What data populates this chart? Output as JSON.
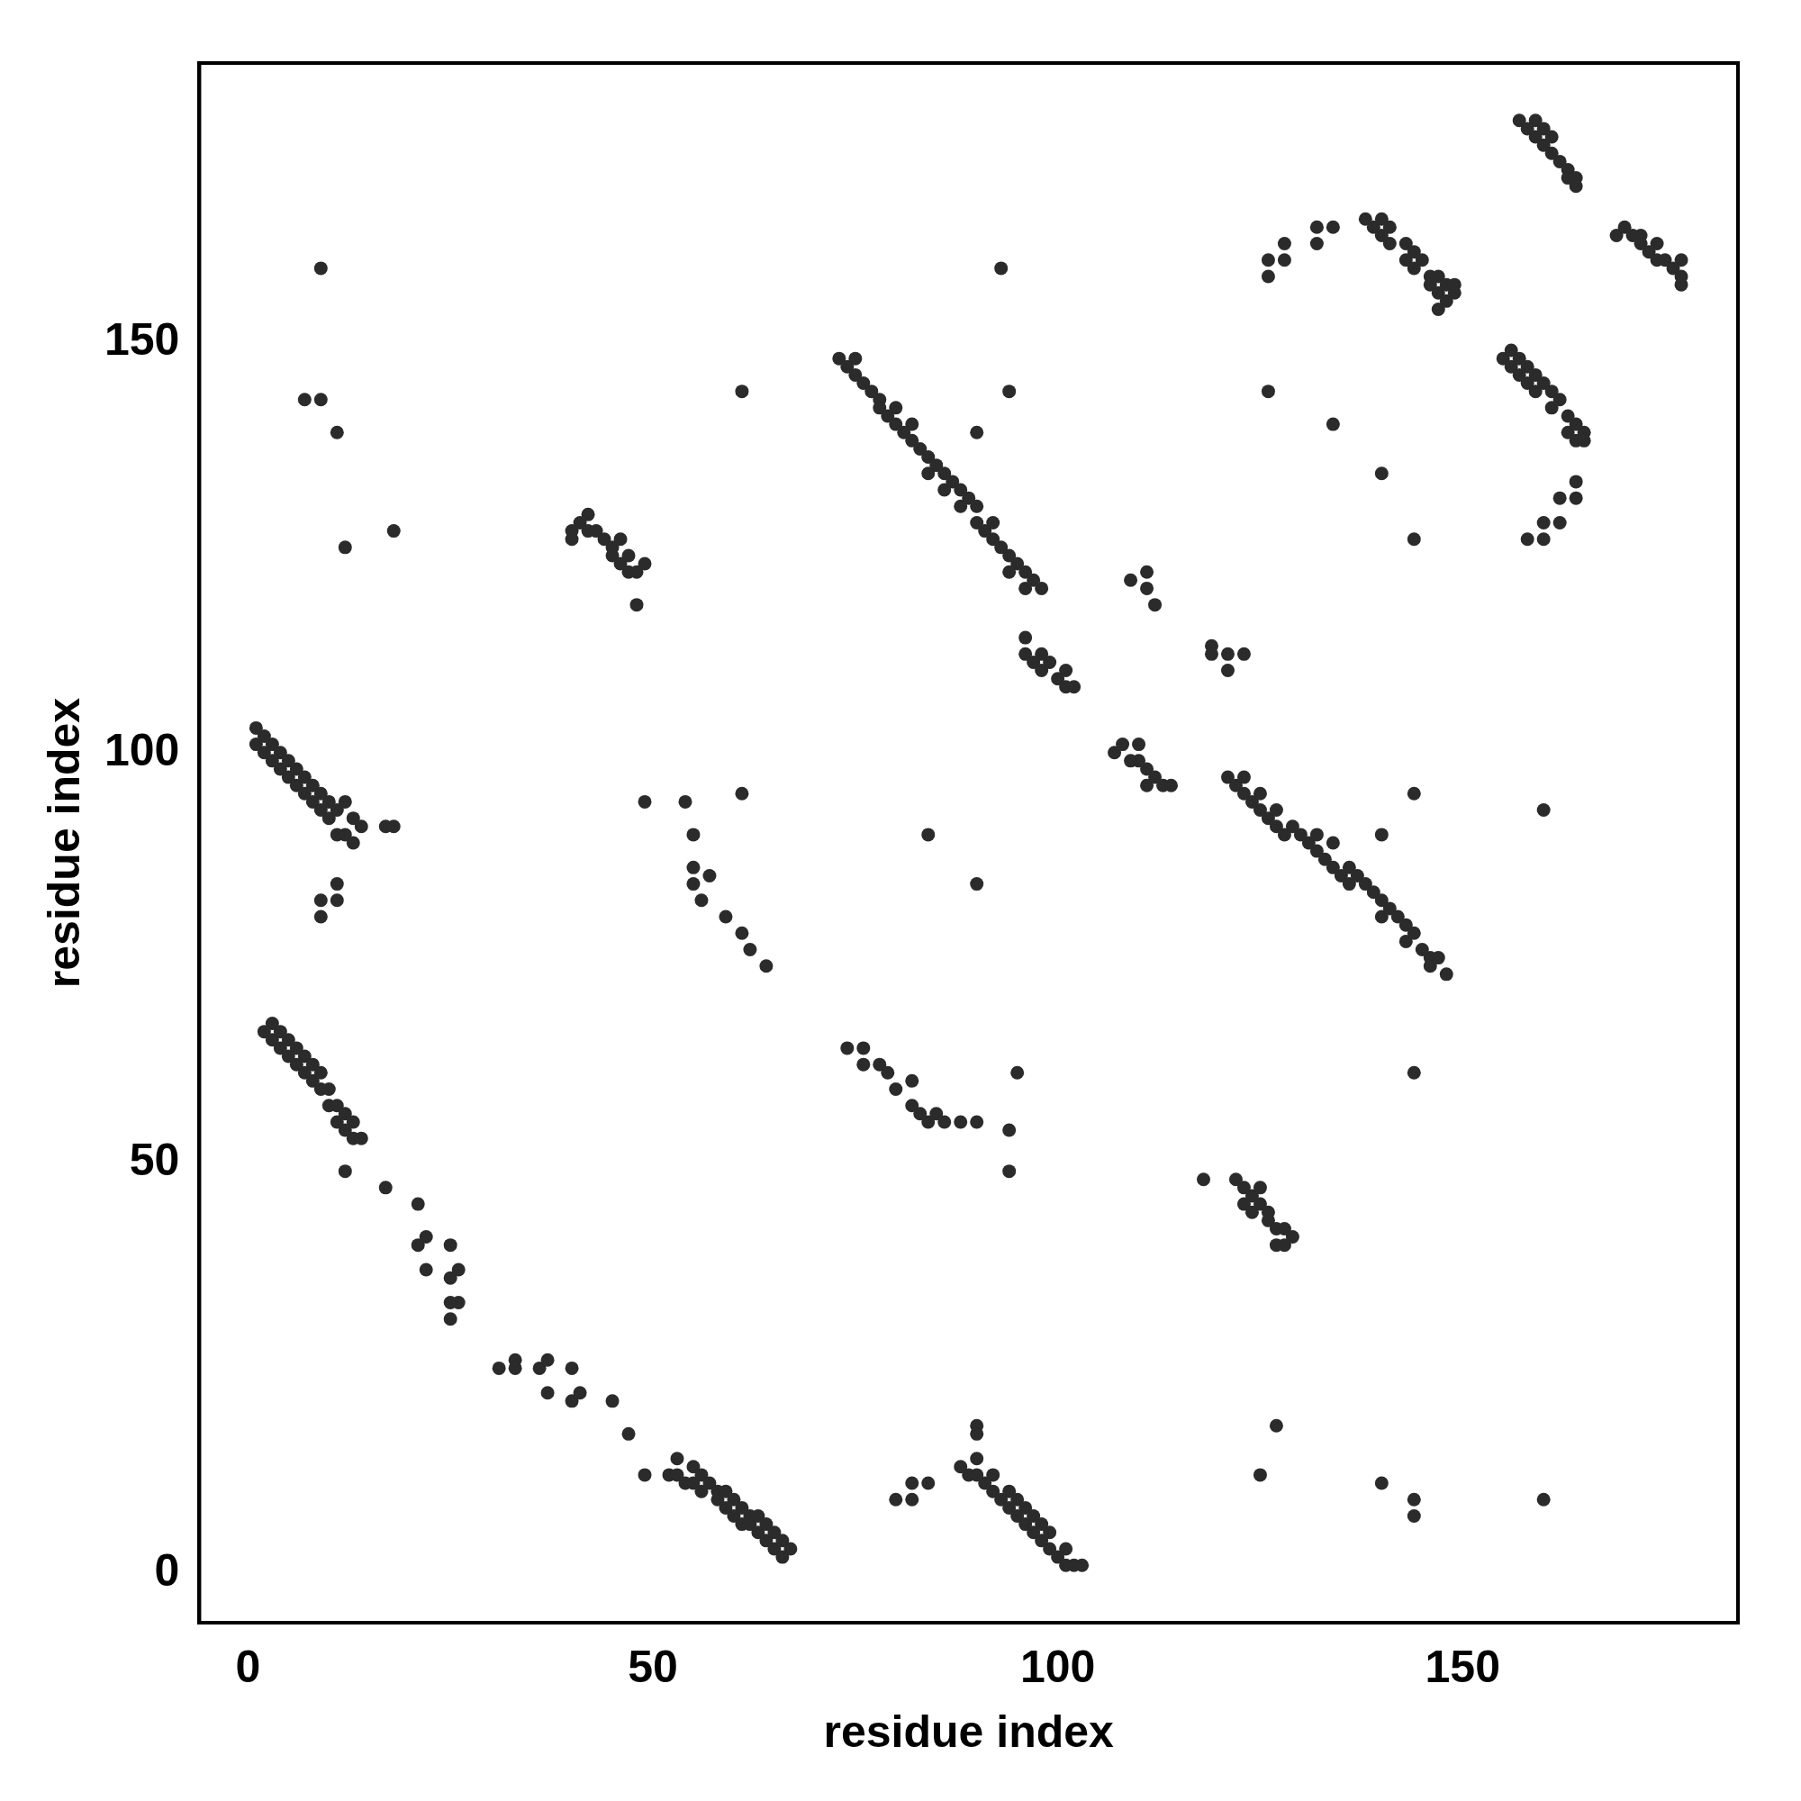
{
  "chart_data": {
    "type": "scatter",
    "xlabel": "residue index",
    "ylabel": "residue index",
    "xlim": [
      -6,
      184
    ],
    "ylim": [
      -6,
      184
    ],
    "xticks": [
      0,
      50,
      100,
      150
    ],
    "yticks": [
      0,
      50,
      100,
      150
    ],
    "grid": false,
    "legend": false,
    "marker": "circle",
    "series": [
      {
        "color": "#2b2b2b",
        "x": [
          1,
          1,
          2,
          2,
          3,
          3,
          4,
          4,
          5,
          5,
          6,
          6,
          7,
          7,
          8,
          8,
          9,
          9,
          10,
          10,
          11,
          11,
          12,
          12,
          13,
          13,
          14,
          17,
          18,
          9,
          9,
          11,
          11,
          9,
          7,
          11,
          12,
          18,
          9,
          2,
          3,
          3,
          4,
          4,
          5,
          5,
          6,
          6,
          7,
          7,
          8,
          8,
          9,
          9,
          10,
          10,
          11,
          11,
          12,
          12,
          13,
          13,
          14,
          12,
          17,
          21,
          22,
          21,
          22,
          25,
          25,
          26,
          25,
          26,
          25,
          31,
          33,
          33,
          36,
          37,
          37,
          40,
          40,
          41,
          45,
          47,
          49,
          52,
          53,
          53,
          54,
          55,
          55,
          56,
          56,
          57,
          58,
          58,
          59,
          59,
          60,
          60,
          61,
          61,
          62,
          62,
          63,
          63,
          64,
          64,
          65,
          65,
          66,
          66,
          67,
          54,
          55,
          55,
          55,
          57,
          56,
          59,
          61,
          62,
          64,
          49,
          61,
          61,
          73,
          74,
          75,
          75,
          76,
          77,
          78,
          78,
          79,
          80,
          80,
          81,
          82,
          82,
          83,
          84,
          84,
          85,
          86,
          86,
          87,
          88,
          88,
          89,
          90,
          90,
          91,
          92,
          92,
          93,
          94,
          94,
          95,
          96,
          96,
          97,
          98,
          90,
          94,
          93,
          40,
          40,
          41,
          42,
          42,
          43,
          44,
          45,
          45,
          46,
          46,
          47,
          47,
          48,
          49,
          48,
          96,
          96,
          97,
          98,
          98,
          99,
          100,
          101,
          101,
          102,
          107,
          108,
          109,
          110,
          110,
          111,
          111,
          112,
          113,
          114,
          109,
          111,
          111,
          112,
          119,
          119,
          121,
          121,
          123,
          121,
          122,
          123,
          123,
          124,
          125,
          125,
          126,
          127,
          127,
          128,
          129,
          130,
          131,
          132,
          132,
          133,
          134,
          134,
          135,
          136,
          136,
          137,
          138,
          139,
          140,
          140,
          141,
          142,
          143,
          143,
          144,
          145,
          146,
          146,
          147,
          148,
          140,
          144,
          160,
          84,
          90,
          94,
          94,
          95,
          144,
          74,
          76,
          76,
          78,
          79,
          80,
          82,
          82,
          83,
          84,
          85,
          86,
          88,
          90,
          118,
          122,
          123,
          123,
          124,
          124,
          125,
          125,
          126,
          126,
          127,
          127,
          128,
          128,
          129,
          88,
          89,
          90,
          90,
          91,
          92,
          92,
          93,
          94,
          94,
          95,
          95,
          96,
          96,
          97,
          97,
          98,
          98,
          99,
          99,
          100,
          101,
          101,
          102,
          103,
          90,
          90,
          80,
          82,
          82,
          84,
          125,
          127,
          140,
          144,
          144,
          160,
          126,
          126,
          128,
          128,
          132,
          132,
          134,
          138,
          139,
          140,
          140,
          141,
          141,
          143,
          143,
          144,
          144,
          145,
          146,
          146,
          147,
          147,
          148,
          148,
          149,
          149,
          147,
          155,
          156,
          156,
          157,
          157,
          158,
          158,
          159,
          159,
          160,
          161,
          161,
          162,
          163,
          163,
          164,
          164,
          165,
          165,
          164,
          162,
          164,
          160,
          162,
          158,
          160,
          126,
          134,
          140,
          144,
          157,
          158,
          159,
          159,
          160,
          160,
          161,
          161,
          162,
          163,
          163,
          164,
          164,
          169,
          170,
          171,
          172,
          172,
          173,
          174,
          174,
          175,
          176,
          177,
          177,
          177
        ],
        "values": [
          103,
          101,
          102,
          100,
          101,
          99,
          100,
          98,
          99,
          97,
          98,
          96,
          97,
          95,
          96,
          94,
          95,
          93,
          94,
          92,
          93,
          90,
          94,
          90,
          92,
          89,
          91,
          91,
          91,
          82,
          80,
          82,
          84,
          143,
          143,
          139,
          125,
          127,
          159,
          66,
          65,
          67,
          64,
          66,
          63,
          65,
          62,
          64,
          61,
          63,
          60,
          62,
          59,
          61,
          57,
          59,
          55,
          57,
          54,
          56,
          53,
          55,
          53,
          49,
          47,
          45,
          41,
          40,
          37,
          40,
          36,
          37,
          33,
          33,
          31,
          25,
          26,
          25,
          25,
          26,
          22,
          25,
          21,
          22,
          21,
          17,
          12,
          12,
          14,
          12,
          11,
          13,
          11,
          12,
          10,
          11,
          10,
          9,
          10,
          8,
          9,
          7,
          8,
          6,
          7,
          6,
          7,
          5,
          6,
          4,
          5,
          3,
          4,
          2,
          3,
          94,
          90,
          86,
          84,
          85,
          82,
          80,
          78,
          76,
          74,
          94,
          95,
          144,
          148,
          147,
          148,
          146,
          145,
          144,
          143,
          142,
          141,
          142,
          140,
          139,
          140,
          138,
          137,
          136,
          134,
          135,
          134,
          132,
          133,
          132,
          130,
          131,
          130,
          128,
          127,
          128,
          126,
          125,
          124,
          122,
          123,
          122,
          120,
          121,
          120,
          139,
          144,
          159,
          127,
          126,
          128,
          129,
          127,
          127,
          126,
          125,
          124,
          126,
          123,
          124,
          122,
          122,
          123,
          118,
          114,
          112,
          111,
          112,
          110,
          111,
          109,
          110,
          108,
          108,
          100,
          101,
          99,
          101,
          99,
          98,
          96,
          97,
          96,
          96,
          121,
          122,
          120,
          118,
          113,
          112,
          112,
          110,
          112,
          97,
          96,
          97,
          95,
          94,
          95,
          93,
          92,
          93,
          91,
          90,
          91,
          90,
          89,
          90,
          88,
          87,
          89,
          86,
          85,
          86,
          84,
          85,
          84,
          83,
          82,
          80,
          81,
          80,
          79,
          77,
          78,
          76,
          75,
          74,
          75,
          73,
          90,
          95,
          93,
          90,
          84,
          54,
          49,
          61,
          61,
          64,
          64,
          62,
          62,
          61,
          59,
          60,
          57,
          56,
          55,
          56,
          55,
          55,
          55,
          48,
          48,
          47,
          45,
          46,
          44,
          47,
          45,
          43,
          44,
          42,
          40,
          42,
          40,
          41,
          13,
          12,
          14,
          12,
          11,
          12,
          10,
          9,
          10,
          8,
          9,
          7,
          8,
          6,
          7,
          5,
          6,
          4,
          5,
          3,
          2,
          3,
          1,
          1,
          1,
          18,
          17,
          9,
          11,
          9,
          11,
          12,
          18,
          11,
          9,
          7,
          9,
          160,
          158,
          162,
          160,
          164,
          162,
          164,
          165,
          164,
          165,
          163,
          164,
          162,
          162,
          160,
          161,
          159,
          160,
          158,
          157,
          158,
          156,
          157,
          155,
          157,
          156,
          154,
          148,
          149,
          147,
          148,
          146,
          147,
          145,
          146,
          144,
          145,
          144,
          142,
          143,
          141,
          139,
          140,
          138,
          139,
          138,
          133,
          131,
          131,
          128,
          128,
          126,
          126,
          144,
          140,
          134,
          126,
          177,
          176,
          177,
          175,
          176,
          174,
          175,
          173,
          172,
          171,
          170,
          169,
          170,
          163,
          164,
          163,
          163,
          162,
          161,
          162,
          160,
          160,
          159,
          160,
          158,
          157
        ]
      }
    ]
  }
}
